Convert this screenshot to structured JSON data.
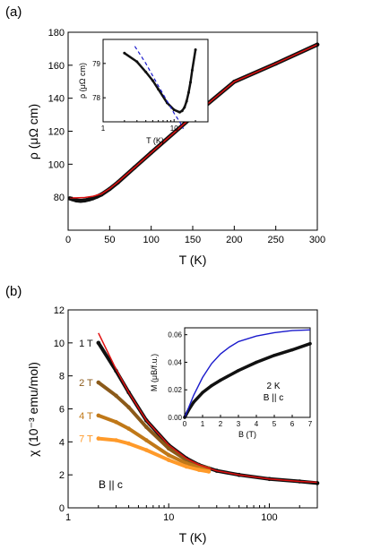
{
  "chart_data": [
    {
      "panel_label": "(a)",
      "type": "line",
      "xlabel": "T (K)",
      "ylabel": "ρ (μΩ cm)",
      "xlim": [
        0,
        300
      ],
      "ylim": [
        60,
        180
      ],
      "xticks": [
        0,
        50,
        100,
        150,
        200,
        250,
        300
      ],
      "yticks": [
        80,
        100,
        120,
        140,
        160,
        180
      ],
      "series": [
        {
          "color": "#111111",
          "style": "markers",
          "x": [
            2,
            5,
            10,
            15,
            20,
            25,
            30,
            35,
            40,
            50,
            60,
            80,
            100,
            150,
            200,
            250,
            300
          ],
          "y": [
            79.3,
            78.8,
            78.0,
            77.8,
            78.0,
            78.6,
            79.4,
            80.4,
            81.6,
            85.0,
            89.0,
            98.0,
            107.0,
            129.0,
            150.0,
            161.0,
            172.5
          ]
        },
        {
          "color": "#e01010",
          "style": "line",
          "x": [
            2,
            10,
            20,
            30,
            40,
            50,
            60,
            80,
            100,
            150,
            200,
            250,
            300
          ],
          "y": [
            79.6,
            79.6,
            79.8,
            80.6,
            82.0,
            85.2,
            89.2,
            98.0,
            107.0,
            129.0,
            150.0,
            161.0,
            172.5
          ]
        }
      ],
      "inset": {
        "type": "line",
        "xlabel": "T (K)",
        "ylabel": "ρ (μΩ cm)",
        "xscale": "log",
        "xlim": [
          1,
          30
        ],
        "ylim": [
          77.3,
          79.7
        ],
        "xtick_labels": [
          "1",
          "10"
        ],
        "yticks": [
          78,
          79
        ],
        "series": [
          {
            "color": "#111111",
            "style": "markers",
            "x": [
              2,
              3,
              4,
              5,
              6,
              8,
              10,
              12,
              13,
              14,
              15,
              16,
              17,
              18,
              20
            ],
            "y": [
              79.3,
              79.05,
              78.75,
              78.5,
              78.25,
              77.85,
              77.65,
              77.58,
              77.62,
              77.72,
              77.9,
              78.15,
              78.45,
              78.8,
              79.4
            ]
          },
          {
            "color": "#1a1acc",
            "style": "dashed",
            "x": [
              2.8,
              4,
              6,
              8,
              10,
              12,
              13.5
            ],
            "y": [
              79.5,
              79.0,
              78.35,
              77.9,
              77.55,
              77.3,
              77.1
            ]
          }
        ]
      }
    },
    {
      "panel_label": "(b)",
      "type": "line",
      "xlabel": "T (K)",
      "ylabel": "χ (10⁻³ emu/mol)",
      "xscale": "log",
      "xlim": [
        1,
        300
      ],
      "ylim": [
        0,
        12
      ],
      "xtick_labels": [
        "1",
        "10",
        "100"
      ],
      "yticks": [
        0,
        2,
        4,
        6,
        8,
        10,
        12
      ],
      "annotation": "B || c",
      "series": [
        {
          "name": "1 T",
          "color": "#111111",
          "style": "markers",
          "x": [
            2,
            3,
            4,
            6,
            10,
            15,
            20,
            30,
            50,
            100,
            200,
            300
          ],
          "y": [
            10.0,
            8.3,
            7.0,
            5.3,
            3.8,
            3.0,
            2.6,
            2.25,
            2.0,
            1.75,
            1.6,
            1.5
          ]
        },
        {
          "name": "2 T",
          "color": "#8b5a1a",
          "style": "markers",
          "x": [
            2,
            3,
            4,
            6,
            10,
            15,
            20,
            25
          ],
          "y": [
            7.6,
            6.8,
            6.1,
            4.9,
            3.6,
            2.9,
            2.55,
            2.4
          ]
        },
        {
          "name": "4 T",
          "color": "#c07818",
          "style": "markers",
          "x": [
            2,
            3,
            4,
            6,
            10,
            15,
            20,
            25
          ],
          "y": [
            5.6,
            5.2,
            4.8,
            4.1,
            3.2,
            2.7,
            2.45,
            2.3
          ]
        },
        {
          "name": "7 T",
          "color": "#ff9a2a",
          "style": "markers",
          "x": [
            2,
            3,
            4,
            6,
            10,
            15,
            20,
            25
          ],
          "y": [
            4.2,
            4.1,
            3.9,
            3.5,
            2.9,
            2.5,
            2.3,
            2.2
          ]
        },
        {
          "color": "#e01010",
          "style": "line",
          "x": [
            2,
            3,
            4,
            6,
            10,
            15,
            20,
            30,
            50,
            100,
            200,
            300
          ],
          "y": [
            10.6,
            8.4,
            7.0,
            5.3,
            3.8,
            3.0,
            2.6,
            2.25,
            2.0,
            1.75,
            1.6,
            1.55
          ]
        }
      ],
      "inset": {
        "type": "line",
        "xlabel": "B (T)",
        "ylabel": "M (μB/f.u.)",
        "xlim": [
          0,
          7
        ],
        "ylim": [
          0,
          0.065
        ],
        "xticks": [
          0,
          1,
          2,
          3,
          4,
          5,
          6,
          7
        ],
        "yticks": [
          0.0,
          0.02,
          0.04,
          0.06
        ],
        "ytick_labels": [
          "0.00",
          "0.02",
          "0.04",
          "0.06"
        ],
        "annotation_lines": [
          "2 K",
          "B || c"
        ],
        "series": [
          {
            "color": "#111111",
            "style": "markers",
            "x": [
              0,
              0.25,
              0.5,
              1,
              1.5,
              2,
              3,
              4,
              5,
              6,
              7
            ],
            "y": [
              0,
              0.006,
              0.011,
              0.018,
              0.023,
              0.027,
              0.034,
              0.04,
              0.045,
              0.049,
              0.0535
            ]
          },
          {
            "color": "#1a1acc",
            "style": "line",
            "x": [
              0,
              0.5,
              1,
              1.5,
              2,
              2.5,
              3,
              4,
              5,
              6,
              7
            ],
            "y": [
              0,
              0.016,
              0.029,
              0.039,
              0.046,
              0.051,
              0.055,
              0.059,
              0.0615,
              0.063,
              0.0635
            ]
          }
        ]
      }
    }
  ]
}
